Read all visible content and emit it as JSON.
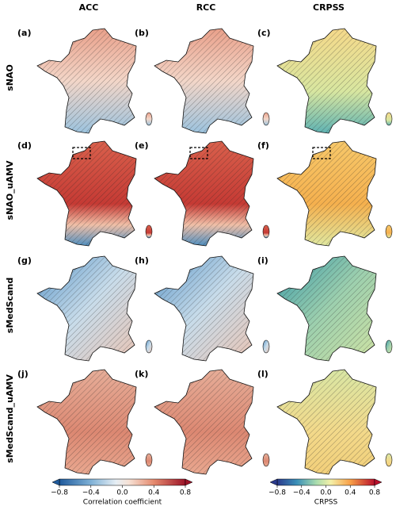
{
  "columns": [
    "ACC",
    "RCC",
    "CRPSS"
  ],
  "rows": [
    "sNAO",
    "sNAO_uAMV",
    "sMedScand",
    "sMedScand_uAMV"
  ],
  "panels": [
    "(a)",
    "(b)",
    "(c)",
    "(d)",
    "(e)",
    "(f)",
    "(g)",
    "(h)",
    "(i)",
    "(j)",
    "(k)",
    "(l)"
  ],
  "colorbars": [
    {
      "label": "Correlation coefficient",
      "range": [
        -0.8,
        0.8
      ],
      "ticks": [
        {
          "value": -0.8,
          "label": "−0.8"
        },
        {
          "value": -0.4,
          "label": "−0.4"
        },
        {
          "value": 0,
          "label": "0.0"
        },
        0.4,
        0.8
      ]
    },
    {
      "label": "CRPSS",
      "range": [
        -0.8,
        0.8
      ],
      "ticks": [
        {
          "value": -0.8,
          "label": "−0.8"
        },
        {
          "value": -0.4,
          "label": "−0.4"
        },
        {
          "value": 0,
          "label": "0.0"
        },
        0.4,
        0.8
      ]
    }
  ]
}
